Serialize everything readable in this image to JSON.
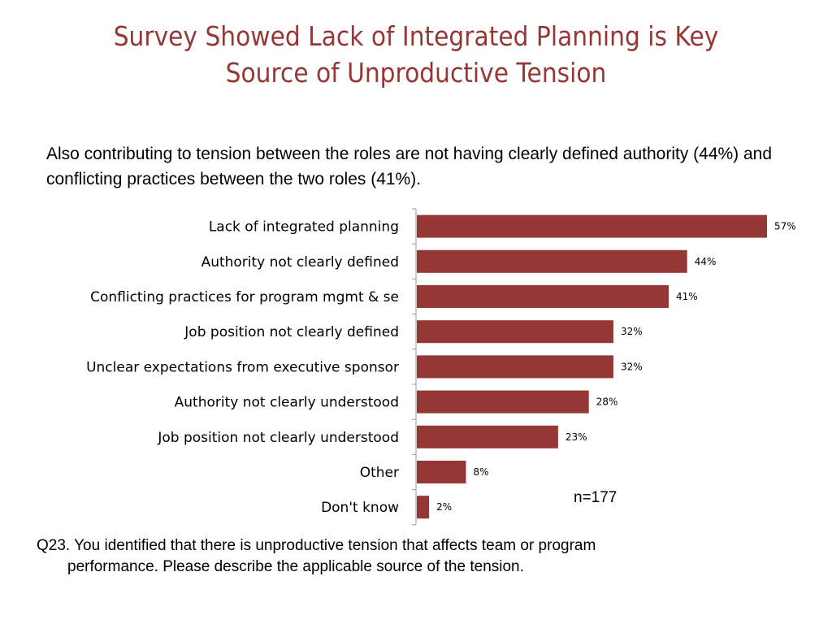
{
  "slide": {
    "title": "Survey Showed Lack of Integrated Planning is Key Source of Unproductive Tension",
    "intro": "Also contributing to tension between the roles are not having clearly defined authority (44%) and conflicting practices between the two roles (41%).",
    "sample_size": "n=177",
    "question_line1": "Q23.  You identified that there is unproductive tension that affects team or program",
    "question_line2": "performance.  Please describe the applicable source of the tension."
  },
  "colors": {
    "title": "#953735",
    "bar": "#953735"
  },
  "chart_data": {
    "type": "bar",
    "orientation": "horizontal",
    "categories": [
      "Lack of integrated planning",
      "Authority not clearly defined",
      "Conflicting practices for program mgmt & se",
      "Job position not clearly defined",
      "Unclear expectations from executive sponsor",
      "Authority not clearly understood",
      "Job position not clearly understood",
      "Other",
      "Don't know"
    ],
    "values": [
      57,
      44,
      41,
      32,
      32,
      28,
      23,
      8,
      2
    ],
    "value_labels": [
      "57%",
      "44%",
      "41%",
      "32%",
      "32%",
      "28%",
      "23%",
      "8%",
      "2%"
    ],
    "unit": "%",
    "xlim": [
      0,
      60
    ],
    "grid": false,
    "legend": "none"
  }
}
